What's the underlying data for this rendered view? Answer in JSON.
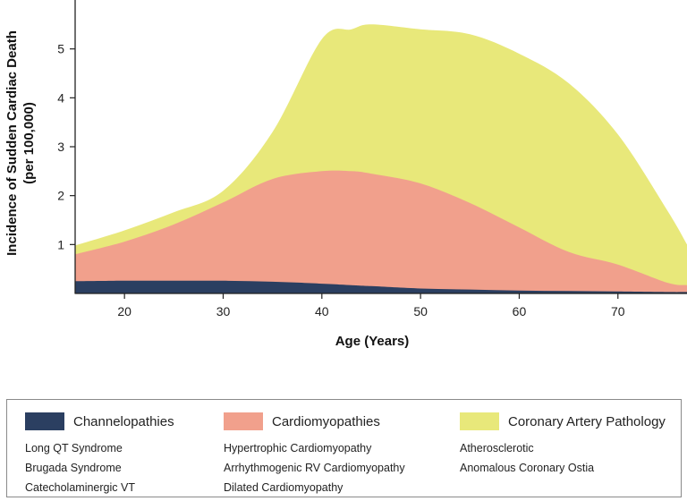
{
  "chart_data": {
    "type": "area",
    "stacked": true,
    "xlabel": "Age (Years)",
    "ylabel_lines": [
      "Incidence of Sudden Cardiac Death",
      "(per 100,000)"
    ],
    "xlim": [
      15,
      77
    ],
    "ylim": [
      0,
      6
    ],
    "x_ticks": [
      20,
      30,
      40,
      50,
      60,
      70
    ],
    "y_ticks": [
      1,
      2,
      3,
      4,
      5
    ],
    "x": [
      15,
      20,
      25,
      30,
      35,
      40,
      43,
      45,
      50,
      55,
      60,
      65,
      70,
      75,
      77
    ],
    "series": [
      {
        "name": "Channelopathies",
        "color": "#2b3f61",
        "values": [
          0.25,
          0.26,
          0.26,
          0.26,
          0.24,
          0.2,
          0.17,
          0.15,
          0.1,
          0.08,
          0.06,
          0.05,
          0.04,
          0.03,
          0.03
        ]
      },
      {
        "name": "Cardiomyopathies",
        "color": "#f1a08c",
        "values": [
          0.55,
          0.8,
          1.15,
          1.6,
          2.1,
          2.3,
          2.33,
          2.3,
          2.15,
          1.77,
          1.29,
          0.8,
          0.55,
          0.19,
          0.14
        ]
      },
      {
        "name": "Coronary Artery Pathology",
        "color": "#e8e87a",
        "values": [
          0.18,
          0.23,
          0.25,
          0.24,
          0.96,
          2.7,
          2.9,
          3.05,
          3.15,
          3.45,
          3.55,
          3.45,
          2.66,
          1.48,
          0.83
        ]
      }
    ],
    "legend": [
      {
        "name": "Channelopathies",
        "color": "#2b3f61",
        "items": [
          "Long QT Syndrome",
          "Brugada Syndrome",
          "Catecholaminergic VT"
        ]
      },
      {
        "name": "Cardiomyopathies",
        "color": "#f1a08c",
        "items": [
          "Hypertrophic Cardiomyopathy",
          "Arrhythmogenic RV Cardiomyopathy",
          "Dilated Cardiomyopathy"
        ]
      },
      {
        "name": "Coronary Artery Pathology",
        "color": "#e8e87a",
        "items": [
          "Atherosclerotic",
          "Anomalous Coronary Ostia"
        ]
      }
    ],
    "legend_placement": "bottom",
    "grid": false
  }
}
